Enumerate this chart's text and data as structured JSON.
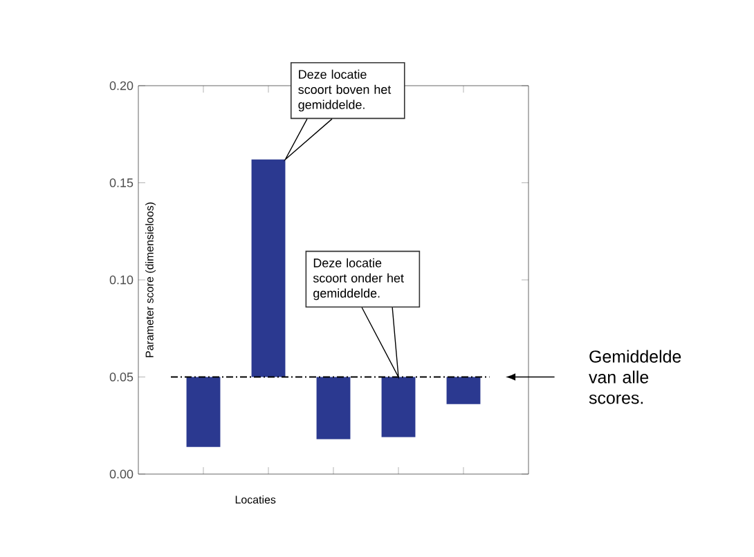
{
  "chart_data": {
    "type": "bar",
    "xlabel": "Locaties",
    "ylabel": "Parameter score (dimensieloos)",
    "categories": [
      null,
      null,
      null,
      null,
      null
    ],
    "base": [
      0.05,
      0.05,
      0.05,
      0.05,
      0.05
    ],
    "values": [
      -0.036,
      0.112,
      -0.032,
      -0.031,
      -0.014
    ],
    "color": "#2b3990",
    "ylim": [
      0,
      0.2
    ],
    "yticks": [
      {
        "value": 0,
        "label": "0.00"
      },
      {
        "value": 0.05,
        "label": "0.05"
      },
      {
        "value": 0.1,
        "label": "0.10"
      },
      {
        "value": 0.15,
        "label": "0.15"
      },
      {
        "value": 0.2,
        "label": "0.20"
      }
    ],
    "ref_lines": [
      {
        "axis": "y",
        "value": 0.05,
        "label": "Gemiddelde van alle scores.",
        "color": "#000000",
        "line_style": "dashed"
      }
    ],
    "annotations": [
      "Deze locatie scoort boven het gemiddelde.",
      "Deze locatie scoort onder het gemiddelde."
    ]
  }
}
